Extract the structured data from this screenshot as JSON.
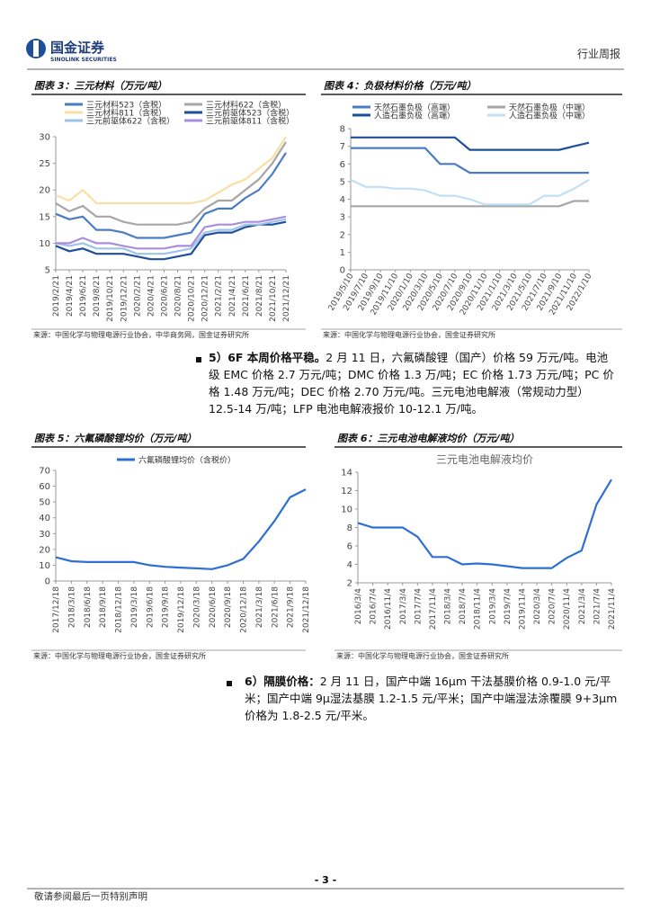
{
  "header": {
    "logo_cn": "国金证券",
    "logo_en": "SINOLINK SECURITIES",
    "report_type": "行业周报"
  },
  "chart_data": [
    {
      "type": "line",
      "title": "图表 3：三元材料（万元/吨）",
      "source": "来源：中国化学与物理电源行业协会，中华商务网，国金证券研究所",
      "categories": [
        "2019/2/21",
        "2019/4/21",
        "2019/6/21",
        "2019/8/21",
        "2019/10/21",
        "2019/12/21",
        "2020/2/21",
        "2020/4/21",
        "2020/6/21",
        "2020/8/21",
        "2020/10/21",
        "2020/12/21",
        "2021/2/21",
        "2021/4/21",
        "2021/6/21",
        "2021/8/21",
        "2021/10/21",
        "2021/12/21"
      ],
      "ylim": [
        5,
        30
      ],
      "yticks": [
        5,
        10,
        15,
        20,
        25,
        30
      ],
      "grid": false,
      "legend": "top",
      "series": [
        {
          "name": "三元材料523（含税）",
          "color": "#4a7cc4",
          "values": [
            15.5,
            14.5,
            15,
            12.5,
            12.5,
            12,
            11,
            11,
            11,
            11.5,
            12,
            15.5,
            16.5,
            16.5,
            18.5,
            20,
            23,
            27
          ]
        },
        {
          "name": "三元材料622（含税）",
          "color": "#a6a6a6",
          "values": [
            17.5,
            16,
            17,
            15,
            15,
            14,
            13.5,
            13.5,
            13.5,
            13.5,
            14,
            16.5,
            18,
            18,
            20,
            22,
            25,
            29
          ]
        },
        {
          "name": "三元材料811（含税）",
          "color": "#f9dfa5",
          "values": [
            19,
            18,
            20,
            17.5,
            17.5,
            17.5,
            17.5,
            17.5,
            17.5,
            17.5,
            17.5,
            18,
            19.5,
            21,
            22,
            24,
            26,
            30
          ]
        },
        {
          "name": "三元前驱体523（含税）",
          "color": "#1f4e9a",
          "values": [
            9.5,
            8.5,
            9,
            8,
            8,
            8,
            7.5,
            7,
            7,
            7.5,
            8,
            11.5,
            12,
            12,
            13,
            13.5,
            13.5,
            14
          ]
        },
        {
          "name": "三元前驱体622（含税）",
          "color": "#9dc3e6",
          "values": [
            10,
            9.5,
            10,
            9,
            9,
            9,
            8,
            8,
            8,
            8.5,
            9,
            12,
            12.5,
            12.5,
            13.5,
            13.5,
            14,
            14.5
          ]
        },
        {
          "name": "三元前驱体811（含税）",
          "color": "#a98ee0",
          "values": [
            10,
            10,
            11,
            10,
            10,
            9.5,
            9,
            9,
            9,
            9.5,
            9.5,
            13,
            13.5,
            13.5,
            14,
            14,
            14.5,
            15
          ]
        }
      ]
    },
    {
      "type": "line",
      "title": "图表 4：负极材料价格（万元/吨）",
      "source": "来源：中国化学与物理电源行业协会，国金证券研究所",
      "categories": [
        "2019/5/10",
        "2019/7/10",
        "2019/9/10",
        "2019/11/10",
        "2020/1/10",
        "2020/3/10",
        "2020/5/10",
        "2020/7/10",
        "2020/9/10",
        "2020/11/10",
        "2021/1/10",
        "2021/3/10",
        "2021/5/10",
        "2021/7/10",
        "2021/9/10",
        "2021/11/10",
        "2022/1/10"
      ],
      "ylim": [
        0,
        8
      ],
      "yticks": [
        0,
        1,
        2,
        3,
        4,
        5,
        6,
        7,
        8
      ],
      "grid": false,
      "legend": "top",
      "series": [
        {
          "name": "天然石墨负极（高端）",
          "color": "#4a7cc4",
          "values": [
            6.9,
            6.9,
            6.9,
            6.9,
            6.9,
            6.9,
            6,
            6,
            5.5,
            5.5,
            5.5,
            5.5,
            5.5,
            5.5,
            5.5,
            5.5,
            5.5
          ]
        },
        {
          "name": "天然石墨负极（中端）",
          "color": "#a6a6a6",
          "values": [
            3.6,
            3.6,
            3.6,
            3.6,
            3.6,
            3.6,
            3.6,
            3.6,
            3.6,
            3.6,
            3.6,
            3.6,
            3.6,
            3.6,
            3.6,
            3.9,
            3.9
          ]
        },
        {
          "name": "人造石墨负极（高端）",
          "color": "#1f4e9a",
          "values": [
            7.5,
            7.5,
            7.5,
            7.5,
            7.5,
            7.5,
            7.5,
            7.5,
            6.8,
            6.8,
            6.8,
            6.8,
            6.8,
            6.8,
            6.8,
            7,
            7.2
          ]
        },
        {
          "name": "人造石墨负极（中端）",
          "color": "#bfe0f7",
          "values": [
            5.1,
            4.7,
            4.7,
            4.6,
            4.6,
            4.5,
            4.2,
            4.2,
            4,
            3.7,
            3.7,
            3.7,
            3.7,
            4.2,
            4.2,
            4.6,
            5.1
          ]
        }
      ]
    },
    {
      "type": "line",
      "title": "图表 5：六氟磷酸锂均价（万元/吨）",
      "source": "来源：中国化学与物理电源行业协会，国金证券研究所",
      "categories": [
        "2017/12/18",
        "2018/3/18",
        "2018/6/18",
        "2018/9/18",
        "2018/12/18",
        "2019/3/18",
        "2019/6/18",
        "2019/9/18",
        "2019/12/18",
        "2020/3/18",
        "2020/6/18",
        "2020/9/18",
        "2020/12/18",
        "2021/3/18",
        "2021/6/18",
        "2021/9/18",
        "2021/12/18"
      ],
      "ylim": [
        0,
        70
      ],
      "yticks": [
        0,
        10,
        20,
        30,
        40,
        50,
        60,
        70
      ],
      "grid": false,
      "legend": "top",
      "series": [
        {
          "name": "六氟磷酸锂均价（含税价）",
          "color": "#2e6fd6",
          "values": [
            15,
            12.5,
            12,
            12,
            12,
            12,
            10,
            9,
            8.5,
            8,
            7.5,
            10,
            14,
            25,
            38,
            53,
            58
          ]
        }
      ]
    },
    {
      "type": "line",
      "title": "图表 6：三元电池电解液均价（万元/吨）",
      "subtitle": "三元电池电解液均价",
      "source": "来源：中国化学与物理电源行业协会，国金证券研究所",
      "categories": [
        "2016/3/4",
        "2016/7/4",
        "2016/11/4",
        "2017/3/4",
        "2017/7/4",
        "2017/11/4",
        "2018/3/4",
        "2018/7/4",
        "2018/11/4",
        "2019/3/4",
        "2019/7/4",
        "2019/11/4",
        "2020/3/4",
        "2020/7/4",
        "2020/11/4",
        "2021/3/4",
        "2021/7/4",
        "2021/11/4"
      ],
      "ylim": [
        2,
        14
      ],
      "yticks": [
        2,
        4,
        6,
        8,
        10,
        12,
        14
      ],
      "grid": false,
      "series": [
        {
          "color": "#2e6fd6",
          "values": [
            8.5,
            8,
            8,
            8,
            7,
            4.8,
            4.8,
            4,
            4.1,
            4,
            3.8,
            3.6,
            3.6,
            3.6,
            4.7,
            5.5,
            10.5,
            13.2
          ]
        }
      ]
    }
  ],
  "paragraphs": [
    {
      "lead": "5）6F 本周价格平稳。",
      "body": "2 月 11 日，六氟磷酸锂（国产）价格 59 万元/吨。电池级 EMC 价格 2.7 万元/吨；DMC 价格 1.3 万/吨；EC 价格 1.73 万元/吨；PC 价格 1.48 万元/吨；DEC 价格 2.70 万元/吨。三元电池电解液（常规动力型）12.5-14 万/吨；LFP 电池电解液报价 10-12.1 万/吨。"
    },
    {
      "lead": "6）隔膜价格：",
      "body": "2 月 11 日，国产中端 16μm 干法基膜价格 0.9-1.0 元/平米；国产中端 9μ湿法基膜 1.2-1.5 元/平米；国产中端湿法涂覆膜 9+3μm 价格为 1.8-2.5 元/平米。"
    }
  ],
  "footer": {
    "page": "- 3 -",
    "disclaimer": "敬请参阅最后一页特别声明"
  }
}
